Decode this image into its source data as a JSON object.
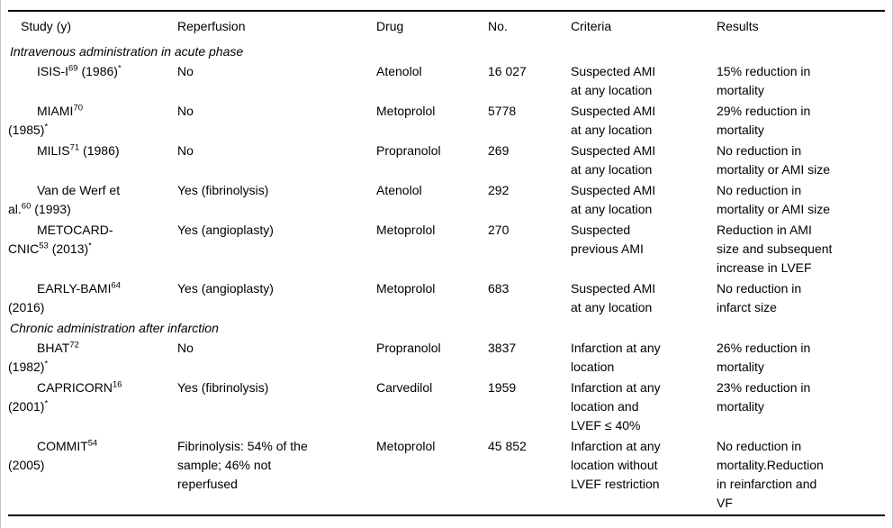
{
  "table": {
    "headers": [
      "Study (y)",
      "Reperfusion",
      "Drug",
      "No.",
      "Criteria",
      "Results"
    ],
    "rows": [
      {
        "type": "section",
        "label": "Intravenous administration in acute phase"
      },
      {
        "type": "study",
        "study": [
          {
            "t": "ISIS-I"
          },
          {
            "t": "69",
            "sup": true
          },
          {
            "t": " (1986)"
          },
          {
            "t": "*",
            "sup": true
          }
        ],
        "reperfusion": "No",
        "drug": "Atenolol",
        "no": "16 027",
        "criteria": "Suspected AMI\nat any location",
        "results": "15% reduction in\nmortality"
      },
      {
        "type": "study",
        "study": [
          {
            "t": "MIAMI"
          },
          {
            "t": "70",
            "sup": true
          },
          {
            "t": "\n(1985)"
          },
          {
            "t": "*",
            "sup": true
          }
        ],
        "reperfusion": "No",
        "drug": "Metoprolol",
        "no": "5778",
        "criteria": "Suspected AMI\nat any location",
        "results": "29% reduction in\nmortality"
      },
      {
        "type": "study",
        "study": [
          {
            "t": "MILIS"
          },
          {
            "t": "71",
            "sup": true
          },
          {
            "t": " (1986)"
          }
        ],
        "reperfusion": "No",
        "drug": "Propranolol",
        "no": "269",
        "criteria": "Suspected AMI\nat any location",
        "results": "No reduction in\nmortality or AMI size"
      },
      {
        "type": "study",
        "study": [
          {
            "t": "Van de Werf et\nal."
          },
          {
            "t": "60",
            "sup": true
          },
          {
            "t": " (1993)"
          }
        ],
        "reperfusion": "Yes (fibrinolysis)",
        "drug": "Atenolol",
        "no": "292",
        "criteria": "Suspected AMI\nat any location",
        "results": "No reduction in\nmortality or AMI size"
      },
      {
        "type": "study",
        "study": [
          {
            "t": "METOCARD-\nCNIC"
          },
          {
            "t": "53",
            "sup": true
          },
          {
            "t": " (2013)"
          },
          {
            "t": "*",
            "sup": true
          }
        ],
        "reperfusion": "Yes (angioplasty)",
        "drug": "Metoprolol",
        "no": "270",
        "criteria": "Suspected\nprevious AMI",
        "results": "Reduction in AMI\nsize and subsequent\nincrease in LVEF"
      },
      {
        "type": "study",
        "study": [
          {
            "t": "EARLY-BAMI"
          },
          {
            "t": "64",
            "sup": true
          },
          {
            "t": "\n(2016)"
          }
        ],
        "reperfusion": "Yes (angioplasty)",
        "drug": "Metoprolol",
        "no": "683",
        "criteria": "Suspected AMI\nat any location",
        "results": "No reduction in\ninfarct size"
      },
      {
        "type": "section",
        "label": "Chronic administration after infarction"
      },
      {
        "type": "study",
        "study": [
          {
            "t": "BHAT"
          },
          {
            "t": "72",
            "sup": true
          },
          {
            "t": "\n(1982)"
          },
          {
            "t": "*",
            "sup": true
          }
        ],
        "reperfusion": "No",
        "drug": "Propranolol",
        "no": "3837",
        "criteria": "Infarction at any\nlocation",
        "results": "26% reduction in\nmortality"
      },
      {
        "type": "study",
        "study": [
          {
            "t": "CAPRICORN"
          },
          {
            "t": "16",
            "sup": true
          },
          {
            "t": "\n(2001)"
          },
          {
            "t": "*",
            "sup": true
          }
        ],
        "reperfusion": "Yes (fibrinolysis)",
        "drug": "Carvedilol",
        "no": "1959",
        "criteria": "Infarction at any\nlocation and\nLVEF ≤ 40%",
        "results": "23% reduction in\nmortality"
      },
      {
        "type": "study",
        "study": [
          {
            "t": "COMMIT"
          },
          {
            "t": "54",
            "sup": true
          },
          {
            "t": "\n(2005)"
          }
        ],
        "reperfusion": "Fibrinolysis: 54% of the\nsample; 46% not\nreperfused",
        "drug": "Metoprolol",
        "no": "45 852",
        "criteria": "Infarction at any\nlocation without\nLVEF restriction",
        "results": "No reduction in\nmortality.Reduction\nin reinfarction and\nVF"
      }
    ]
  },
  "colors": {
    "rule": "#000000",
    "frame_border": "#c4c4c4",
    "text": "#000000",
    "background": "#ffffff"
  }
}
